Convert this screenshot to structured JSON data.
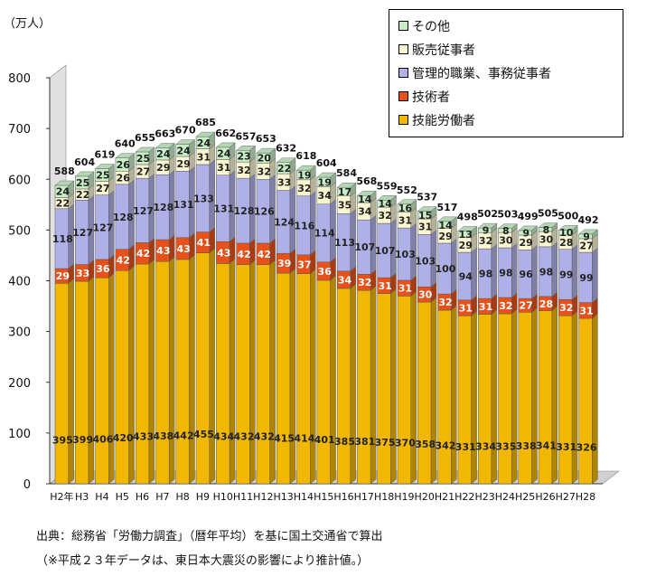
{
  "chart_data": {
    "type": "bar",
    "stacked": true,
    "unit_label": "（万人）",
    "categories": [
      "H2年",
      "H3",
      "H4",
      "H5",
      "H6",
      "H7",
      "H8",
      "H9",
      "H10",
      "H11",
      "H12",
      "H13",
      "H14",
      "H15",
      "H16",
      "H17",
      "H18",
      "H19",
      "H20",
      "H21",
      "H22",
      "H23",
      "H24",
      "H25",
      "H26",
      "H27",
      "H28"
    ],
    "series": [
      {
        "name": "技能労働者",
        "color": "#f2b800",
        "values": [
          395,
          399,
          406,
          420,
          433,
          438,
          442,
          455,
          434,
          432,
          432,
          415,
          414,
          401,
          385,
          381,
          375,
          370,
          358,
          342,
          331,
          334,
          335,
          338,
          341,
          331,
          326
        ]
      },
      {
        "name": "技術者",
        "color": "#e8521a",
        "values": [
          29,
          33,
          36,
          42,
          42,
          43,
          43,
          41,
          43,
          42,
          42,
          39,
          37,
          36,
          34,
          32,
          31,
          31,
          30,
          32,
          31,
          31,
          32,
          27,
          28,
          32,
          31
        ]
      },
      {
        "name": "管理的職業、事務従事者",
        "color": "#b0b0e8",
        "values": [
          118,
          127,
          127,
          128,
          127,
          128,
          131,
          133,
          131,
          128,
          126,
          124,
          116,
          114,
          113,
          107,
          107,
          103,
          103,
          100,
          94,
          98,
          98,
          96,
          98,
          99,
          99
        ]
      },
      {
        "name": "販売従事者",
        "color": "#fbf6d2",
        "values": [
          22,
          22,
          27,
          26,
          27,
          29,
          29,
          31,
          31,
          32,
          32,
          33,
          32,
          34,
          35,
          34,
          32,
          31,
          31,
          29,
          29,
          32,
          30,
          29,
          30,
          28,
          27
        ]
      },
      {
        "name": "その他",
        "color": "#c8eec8",
        "values": [
          24,
          25,
          25,
          26,
          25,
          24,
          24,
          24,
          24,
          23,
          20,
          22,
          19,
          19,
          17,
          14,
          14,
          16,
          15,
          14,
          13,
          9,
          8,
          9,
          8,
          10,
          9
        ]
      }
    ],
    "totals": [
      588,
      604,
      619,
      640,
      655,
      663,
      670,
      685,
      662,
      657,
      653,
      632,
      618,
      604,
      584,
      568,
      559,
      552,
      537,
      517,
      498,
      502,
      503,
      499,
      505,
      500,
      492
    ],
    "ylim": [
      0,
      800
    ],
    "yticks": [
      0,
      100,
      200,
      300,
      400,
      500,
      600,
      700,
      800
    ],
    "legend_position": "top-right",
    "legend_order": [
      "その他",
      "販売従事者",
      "管理的職業、事務従事者",
      "技術者",
      "技能労働者"
    ],
    "grid": false
  },
  "source_note": "出典：総務省「労働力調査」（暦年平均）を基に国土交通省で算出",
  "estimate_note": "（※平成２３年データは、東日本大震災の影響により推計値。）"
}
